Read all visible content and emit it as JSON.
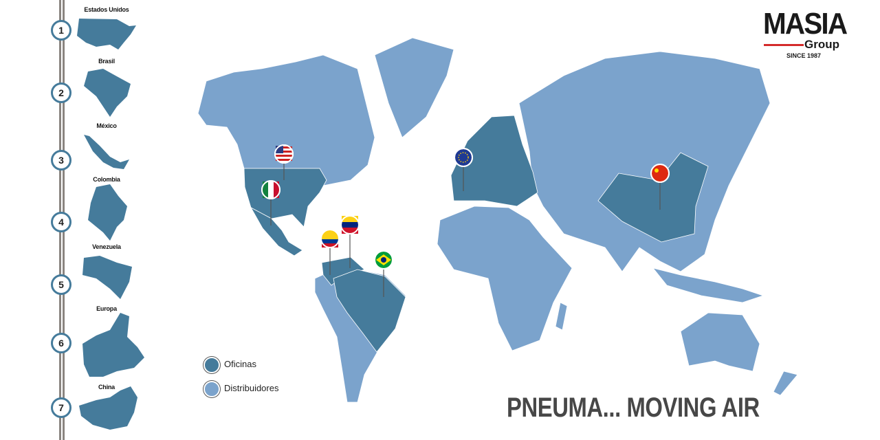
{
  "colors": {
    "office": "#457b9b",
    "distributor": "#7ba3cc",
    "accent_red": "#d42a2a"
  },
  "sidebar": {
    "items": [
      {
        "number": "1",
        "label": "Estados Unidos"
      },
      {
        "number": "2",
        "label": "Brasil"
      },
      {
        "number": "3",
        "label": "México"
      },
      {
        "number": "4",
        "label": "Colombia"
      },
      {
        "number": "5",
        "label": "Venezuela"
      },
      {
        "number": "6",
        "label": "Europa"
      },
      {
        "number": "7",
        "label": "China"
      }
    ]
  },
  "logo": {
    "name": "MASIA",
    "sub": "Group",
    "since": "SINCE 1987"
  },
  "legend": {
    "offices": "Oficinas",
    "distributors": "Distribuidores"
  },
  "pins": [
    "usa-flag",
    "mexico-flag",
    "colombia-flag",
    "venezuela-flag",
    "brazil-flag",
    "eu-flag",
    "china-flag"
  ],
  "tagline": "PNEUMA... MOVING AIR"
}
